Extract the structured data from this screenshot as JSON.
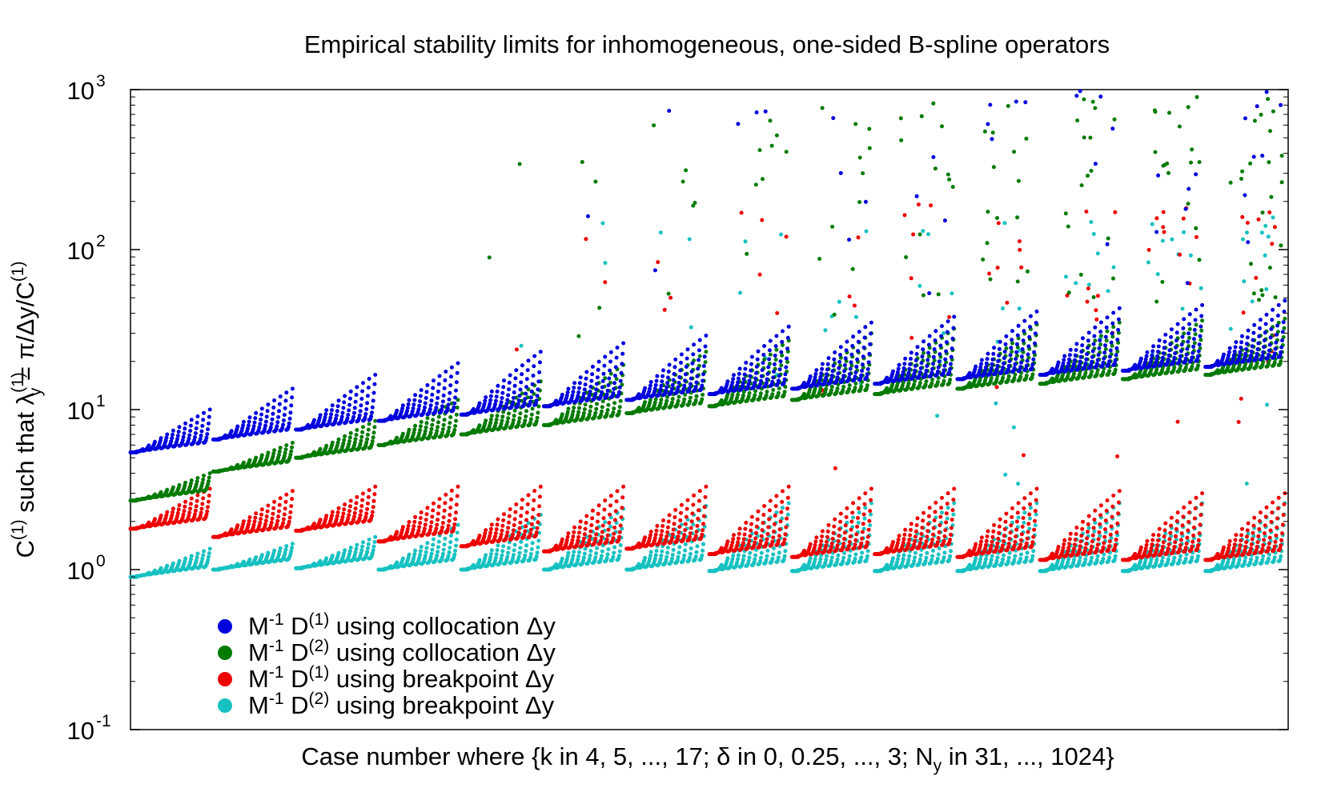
{
  "chart_data": {
    "type": "scatter",
    "title": "Empirical stability limits for inhomogeneous, one-sided B-spline operators",
    "xlabel": {
      "prefix": "Case number where {k in 4, 5, ..., 17; ",
      "delta_symbol": "δ",
      "mid": " in 0, 0.25, ..., 3; N",
      "sub": "y",
      "suffix": " in 31, ..., 1024}"
    },
    "ylabel": {
      "C": "C",
      "C_sup": "(1)",
      "mid": " such that ",
      "lambda": "λ",
      "lambda_sup": "(1)",
      "lambda_sub": "y",
      "eq": " = π/Δy/C",
      "end_sup": "(1)"
    },
    "y_scale": "log",
    "ylim": [
      0.1,
      1000
    ],
    "xlim": [
      0,
      14
    ],
    "y_ticks": [
      {
        "base": "10",
        "exp": "-1",
        "value": 0.1
      },
      {
        "base": "10",
        "exp": "0",
        "value": 1
      },
      {
        "base": "10",
        "exp": "1",
        "value": 10
      },
      {
        "base": "10",
        "exp": "2",
        "value": 100
      },
      {
        "base": "10",
        "exp": "3",
        "value": 1000
      }
    ],
    "x_tick_labels": "none",
    "legend_position": "bottom-left",
    "groups": {
      "k": [
        4,
        5,
        6,
        7,
        8,
        9,
        10,
        11,
        12,
        13,
        14,
        15,
        16,
        17
      ],
      "collocation_D1_base": [
        5.4,
        6.5,
        7.5,
        8.5,
        9.3,
        10.5,
        11.5,
        12.5,
        13.5,
        14.5,
        15.5,
        16.5,
        17.5,
        18.5
      ],
      "collocation_D1_peak": [
        10,
        13.5,
        16.5,
        19.5,
        23,
        26,
        29,
        33,
        35,
        38,
        41,
        43,
        45,
        48
      ],
      "collocation_D2_base": [
        2.7,
        4.1,
        5.0,
        6.0,
        7.0,
        8.0,
        9.5,
        10.5,
        11.5,
        12.5,
        13.5,
        14.5,
        15.5,
        16.5
      ],
      "collocation_D2_peak": [
        4.0,
        6.2,
        8.5,
        11.5,
        15,
        19,
        23,
        27,
        30,
        32,
        34,
        35,
        36,
        37
      ],
      "breakpoint_D1_base": [
        1.8,
        1.6,
        1.75,
        1.5,
        1.4,
        1.3,
        1.35,
        1.25,
        1.2,
        1.25,
        1.2,
        1.15,
        1.15,
        1.15
      ],
      "breakpoint_D1_peak": [
        3.2,
        3.1,
        3.3,
        3.3,
        3.3,
        3.3,
        3.3,
        3.3,
        3.2,
        3.2,
        3.2,
        3.1,
        3.0,
        3.0
      ],
      "breakpoint_D2_base": [
        0.9,
        1.0,
        1.02,
        1.0,
        1.0,
        1.0,
        1.0,
        0.98,
        0.98,
        0.98,
        0.98,
        0.98,
        0.98,
        0.98
      ],
      "breakpoint_D2_peak": [
        1.35,
        1.45,
        1.6,
        1.9,
        2.2,
        2.4,
        2.5,
        2.6,
        2.6,
        2.6,
        2.6,
        2.6,
        2.6,
        2.6
      ]
    },
    "series": [
      {
        "name_prefix": "M",
        "name_sup1": "-1",
        "name_mid": " D",
        "name_sup2": "(1)",
        "name_suffix": " using collocation Δy",
        "color": "#0000dd"
      },
      {
        "name_prefix": "M",
        "name_sup1": "-1",
        "name_mid": " D",
        "name_sup2": "(2)",
        "name_suffix": " using collocation Δy",
        "color": "#007a00"
      },
      {
        "name_prefix": "M",
        "name_sup1": "-1",
        "name_mid": " D",
        "name_sup2": "(1)",
        "name_suffix": " using breakpoint Δy",
        "color": "#ee0000"
      },
      {
        "name_prefix": "M",
        "name_sup1": "-1",
        "name_mid": " D",
        "name_sup2": "(2)",
        "name_suffix": " using breakpoint Δy",
        "color": "#17c1c1"
      }
    ]
  }
}
